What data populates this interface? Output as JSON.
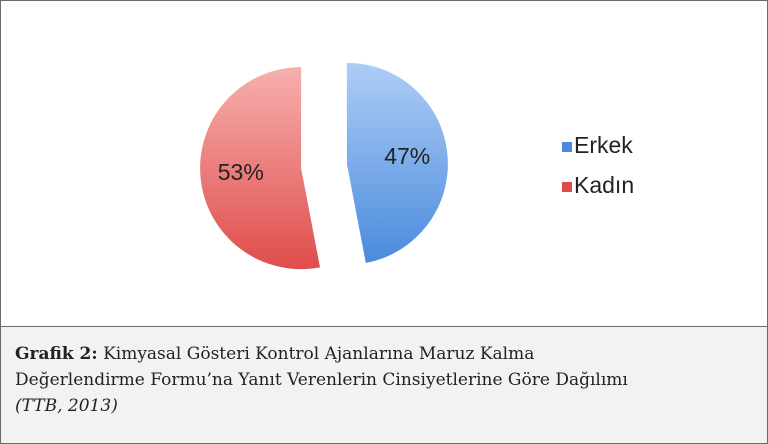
{
  "chart_data": {
    "type": "pie",
    "categories": [
      "Erkek",
      "Kadın"
    ],
    "values": [
      47,
      53
    ],
    "value_labels": [
      "47%",
      "53%"
    ],
    "colors": [
      [
        "#aecdf7",
        "#4a8bdc"
      ],
      [
        "#f6b0ae",
        "#df4d4b"
      ]
    ],
    "legend": "right",
    "exploded": true
  },
  "caption": {
    "label": "Grafik 2:",
    "lines": [
      "Kimyasal Gösteri Kontrol Ajanlarına Maruz Kalma",
      "Değerlendirme Formu’na Yanıt Verenlerin Cinsiyetlerine Göre Dağılımı"
    ],
    "source": "(TTB, 2013)"
  }
}
